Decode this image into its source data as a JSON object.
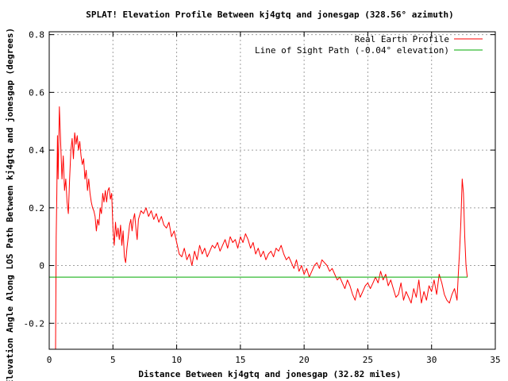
{
  "chart_data": {
    "type": "line",
    "title": "SPLAT! Elevation Profile Between kj4gtq and jonesgap (328.56° azimuth)",
    "xlabel": "Distance Between kj4gtq and jonesgap (32.82 miles)",
    "ylabel": "Elevation Angle Along LOS Path Between kj4gtq and jonesgap (degrees)",
    "xlim": [
      0,
      35
    ],
    "ylim": [
      -0.29,
      0.81
    ],
    "x_ticks": [
      0,
      5,
      10,
      15,
      20,
      25,
      30,
      35
    ],
    "x_tick_labels": [
      "0",
      "5",
      "10",
      "15",
      "20",
      "25",
      "30",
      "35"
    ],
    "y_ticks": [
      -0.2,
      0,
      0.2,
      0.4,
      0.6,
      0.8
    ],
    "y_tick_labels": [
      "-0.2",
      "0",
      "0.2",
      "0.4",
      "0.6",
      "0.8"
    ],
    "grid": true,
    "legend_position": "top-right",
    "colors": {
      "profile": "#ff0000",
      "los": "#00aa00",
      "grid": "#a0a0a0",
      "axis": "#000000"
    },
    "series": [
      {
        "name": "Real Earth Profile",
        "color": "#ff0000",
        "x": [
          0.5,
          0.55,
          0.6,
          0.65,
          0.7,
          0.8,
          0.9,
          1.0,
          1.1,
          1.2,
          1.3,
          1.4,
          1.5,
          1.6,
          1.7,
          1.8,
          1.9,
          2.0,
          2.1,
          2.2,
          2.3,
          2.4,
          2.5,
          2.6,
          2.7,
          2.8,
          2.9,
          3.0,
          3.1,
          3.2,
          3.3,
          3.4,
          3.5,
          3.6,
          3.7,
          3.8,
          3.9,
          4.0,
          4.1,
          4.2,
          4.3,
          4.4,
          4.5,
          4.6,
          4.7,
          4.8,
          4.9,
          5.0,
          5.1,
          5.2,
          5.3,
          5.4,
          5.5,
          5.6,
          5.7,
          5.8,
          5.9,
          6.0,
          6.1,
          6.2,
          6.3,
          6.4,
          6.5,
          6.6,
          6.7,
          6.8,
          6.9,
          7.0,
          7.2,
          7.4,
          7.6,
          7.8,
          8.0,
          8.2,
          8.4,
          8.6,
          8.8,
          9.0,
          9.2,
          9.4,
          9.6,
          9.8,
          10.0,
          10.2,
          10.4,
          10.6,
          10.8,
          11.0,
          11.2,
          11.4,
          11.6,
          11.8,
          12.0,
          12.2,
          12.4,
          12.6,
          12.8,
          13.0,
          13.2,
          13.4,
          13.6,
          13.8,
          14.0,
          14.2,
          14.4,
          14.6,
          14.8,
          15.0,
          15.2,
          15.4,
          15.6,
          15.8,
          16.0,
          16.2,
          16.4,
          16.6,
          16.8,
          17.0,
          17.2,
          17.4,
          17.6,
          17.8,
          18.0,
          18.2,
          18.4,
          18.6,
          18.8,
          19.0,
          19.2,
          19.4,
          19.6,
          19.8,
          20.0,
          20.2,
          20.4,
          20.6,
          20.8,
          21.0,
          21.2,
          21.4,
          21.6,
          21.8,
          22.0,
          22.2,
          22.4,
          22.6,
          22.8,
          23.0,
          23.2,
          23.4,
          23.6,
          23.8,
          24.0,
          24.2,
          24.4,
          24.6,
          24.8,
          25.0,
          25.2,
          25.4,
          25.6,
          25.8,
          26.0,
          26.2,
          26.4,
          26.6,
          26.8,
          27.0,
          27.2,
          27.4,
          27.6,
          27.8,
          28.0,
          28.2,
          28.4,
          28.6,
          28.8,
          29.0,
          29.2,
          29.4,
          29.6,
          29.8,
          30.0,
          30.2,
          30.4,
          30.6,
          30.8,
          31.0,
          31.2,
          31.4,
          31.6,
          31.8,
          32.0,
          32.1,
          32.2,
          32.3,
          32.4,
          32.5,
          32.6,
          32.7,
          32.8
        ],
        "y": [
          -0.29,
          0.1,
          0.25,
          0.45,
          0.3,
          0.55,
          0.42,
          0.3,
          0.38,
          0.26,
          0.3,
          0.22,
          0.18,
          0.3,
          0.4,
          0.44,
          0.37,
          0.46,
          0.42,
          0.45,
          0.4,
          0.43,
          0.38,
          0.35,
          0.37,
          0.3,
          0.33,
          0.26,
          0.3,
          0.25,
          0.22,
          0.2,
          0.19,
          0.17,
          0.12,
          0.16,
          0.14,
          0.2,
          0.18,
          0.25,
          0.22,
          0.26,
          0.22,
          0.26,
          0.27,
          0.23,
          0.25,
          0.13,
          0.07,
          0.15,
          0.1,
          0.13,
          0.09,
          0.14,
          0.07,
          0.12,
          0.03,
          0.01,
          0.06,
          0.1,
          0.14,
          0.16,
          0.12,
          0.16,
          0.18,
          0.13,
          0.09,
          0.16,
          0.19,
          0.18,
          0.2,
          0.17,
          0.19,
          0.16,
          0.18,
          0.15,
          0.17,
          0.14,
          0.13,
          0.15,
          0.1,
          0.12,
          0.08,
          0.04,
          0.03,
          0.06,
          0.02,
          0.04,
          0.0,
          0.05,
          0.02,
          0.07,
          0.04,
          0.06,
          0.03,
          0.05,
          0.07,
          0.06,
          0.08,
          0.05,
          0.07,
          0.09,
          0.06,
          0.1,
          0.08,
          0.09,
          0.06,
          0.1,
          0.08,
          0.11,
          0.09,
          0.06,
          0.08,
          0.04,
          0.06,
          0.03,
          0.05,
          0.02,
          0.04,
          0.05,
          0.03,
          0.06,
          0.05,
          0.07,
          0.04,
          0.02,
          0.03,
          0.01,
          -0.01,
          0.02,
          -0.02,
          0.0,
          -0.03,
          -0.01,
          -0.04,
          -0.02,
          0.0,
          0.01,
          -0.01,
          0.02,
          0.01,
          0.0,
          -0.02,
          -0.01,
          -0.03,
          -0.05,
          -0.04,
          -0.06,
          -0.08,
          -0.05,
          -0.07,
          -0.1,
          -0.12,
          -0.08,
          -0.11,
          -0.09,
          -0.07,
          -0.06,
          -0.08,
          -0.06,
          -0.04,
          -0.06,
          -0.02,
          -0.05,
          -0.03,
          -0.07,
          -0.05,
          -0.08,
          -0.11,
          -0.1,
          -0.06,
          -0.12,
          -0.09,
          -0.11,
          -0.13,
          -0.08,
          -0.11,
          -0.05,
          -0.13,
          -0.09,
          -0.12,
          -0.07,
          -0.09,
          -0.05,
          -0.1,
          -0.03,
          -0.06,
          -0.1,
          -0.12,
          -0.13,
          -0.1,
          -0.08,
          -0.12,
          -0.03,
          0.05,
          0.15,
          0.3,
          0.25,
          0.1,
          0.0,
          -0.04
        ]
      },
      {
        "name": "Line of Sight Path (-0.04° elevation)",
        "color": "#00aa00",
        "x": [
          0,
          32.82
        ],
        "y": [
          -0.04,
          -0.04
        ]
      }
    ]
  }
}
